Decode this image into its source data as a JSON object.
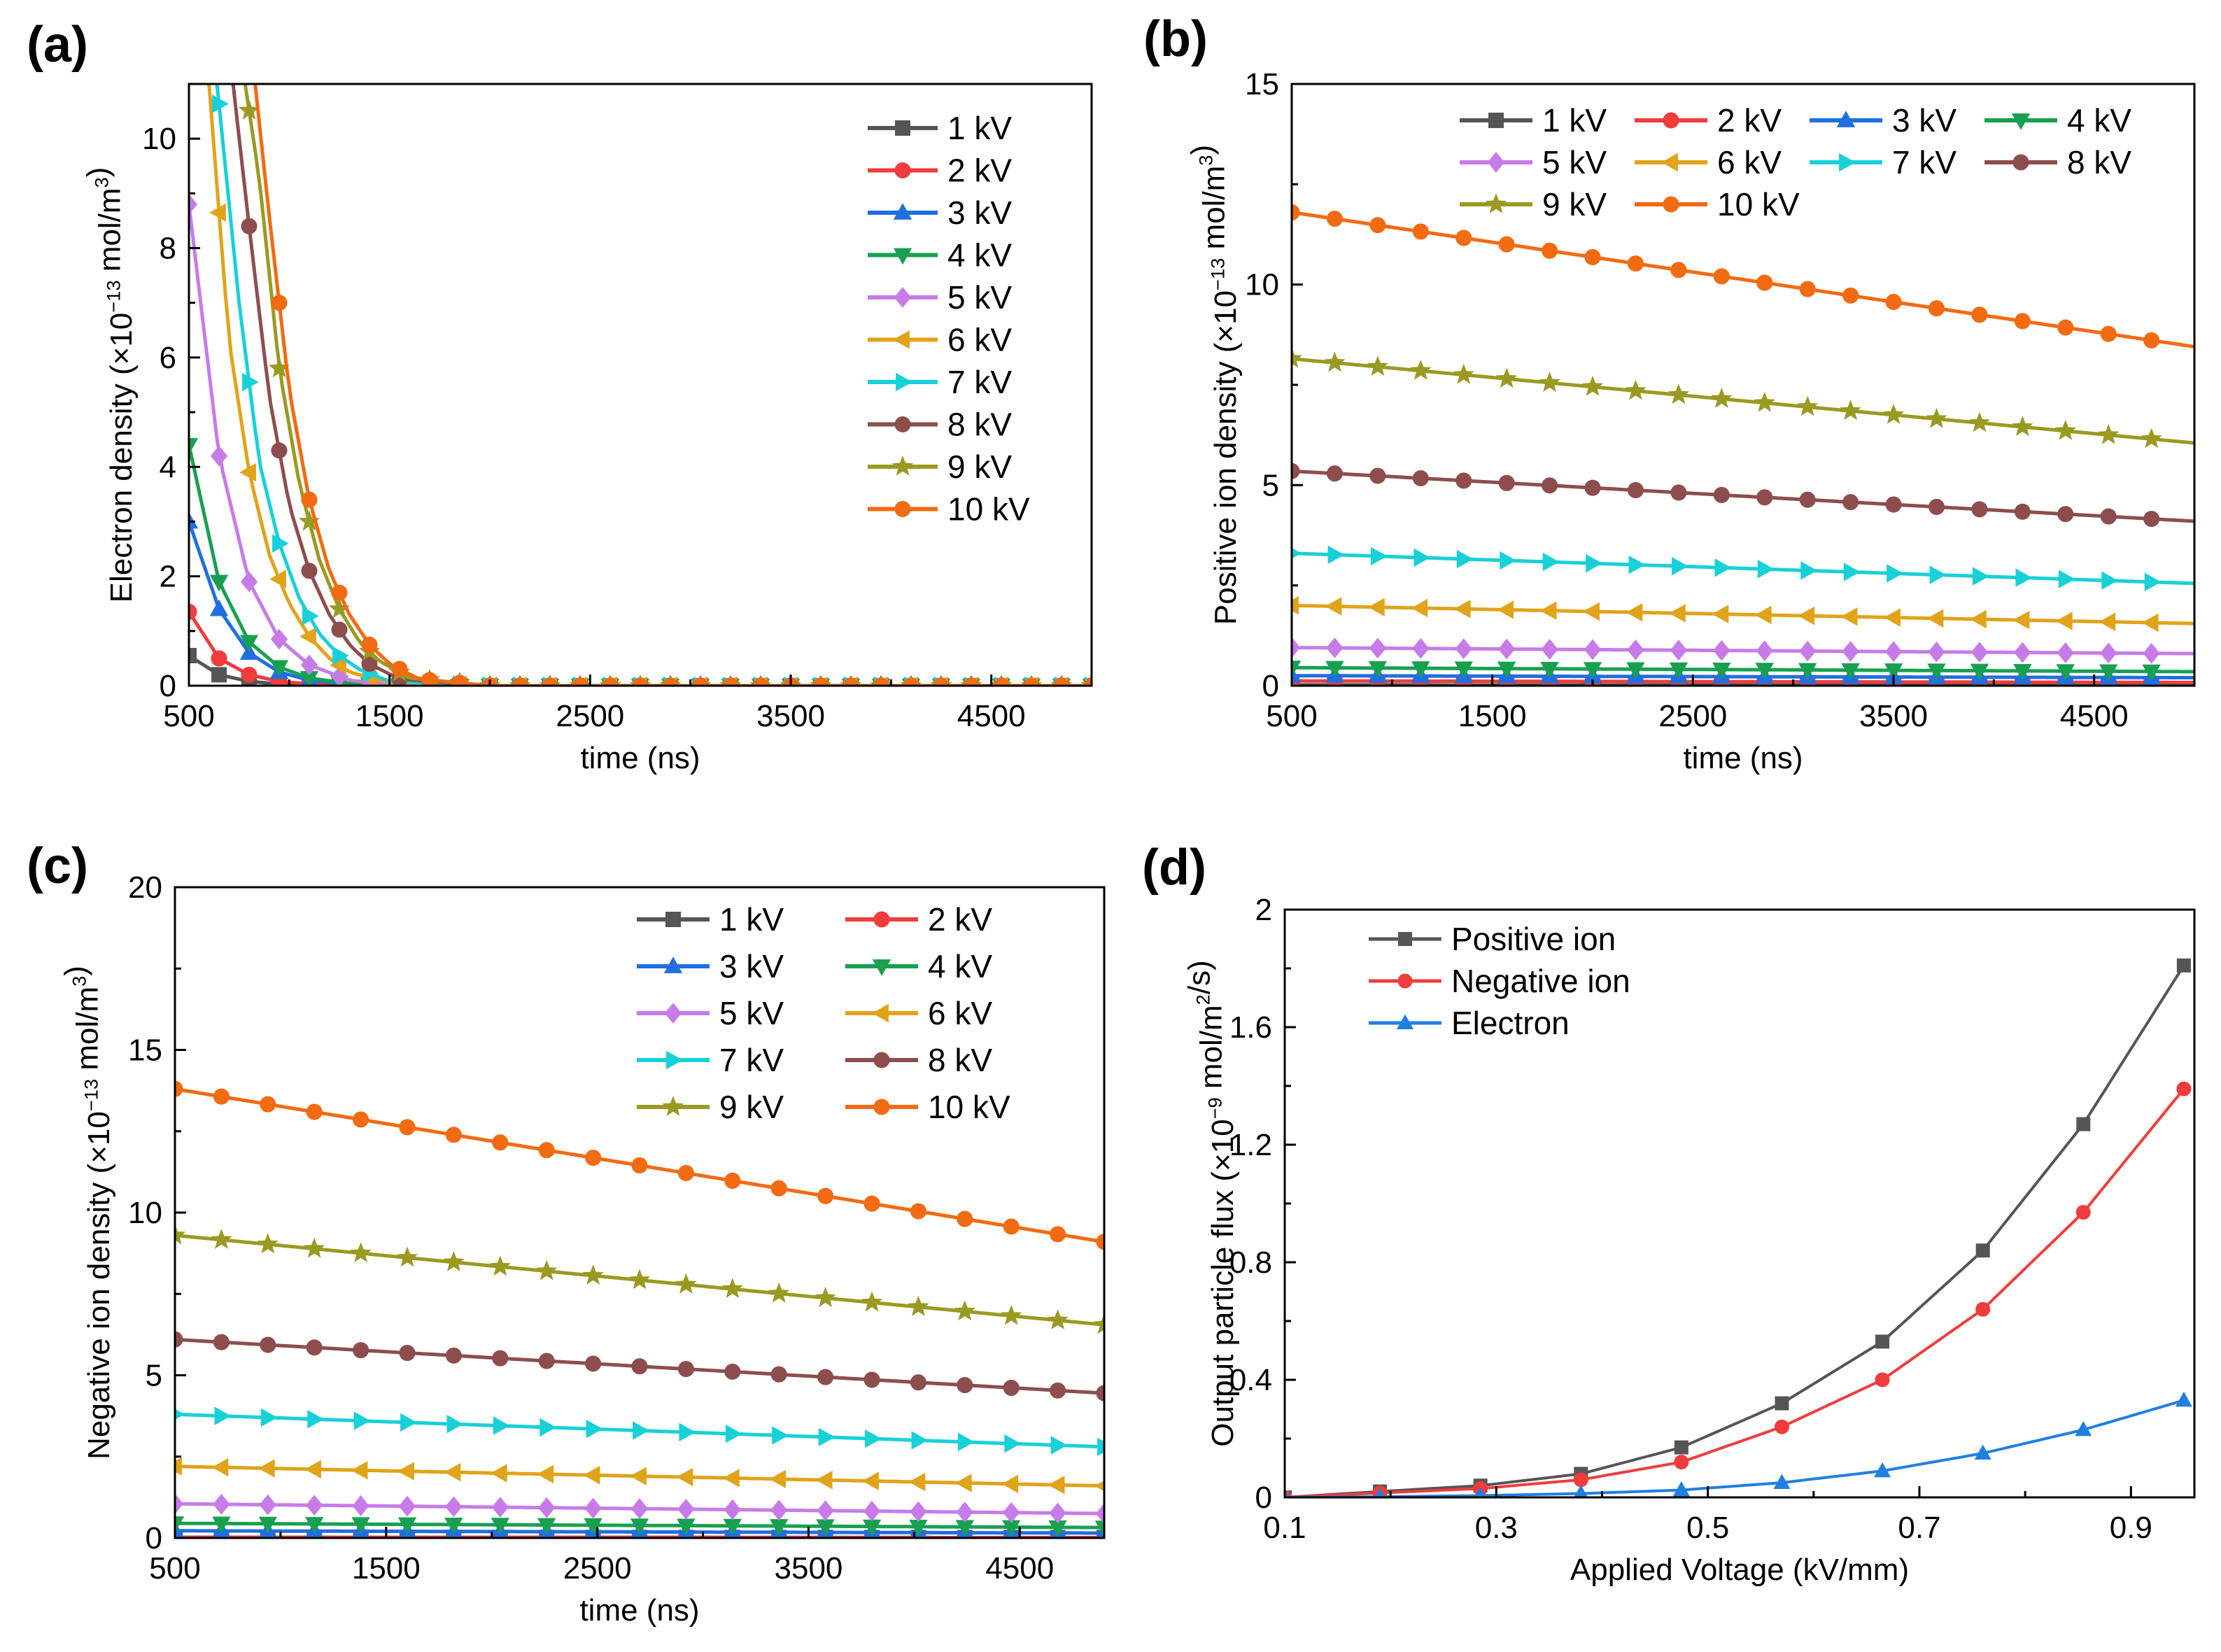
{
  "colors": {
    "1 kV": "#555555",
    "2 kV": "#f03c3c",
    "3 kV": "#1f6fe0",
    "4 kV": "#18a050",
    "5 kV": "#c77be8",
    "6 kV": "#e0a31a",
    "7 kV": "#18d0d8",
    "8 kV": "#8e4d4d",
    "9 kV": "#9a9a22",
    "10 kV": "#f26a12",
    "Positive ion": "#555555",
    "Negative ion": "#f03c3c",
    "Electron": "#1f80e0"
  },
  "chart_data": [
    {
      "id": "a",
      "panel_label": "(a)",
      "type": "line",
      "xlabel": "time (ns)",
      "ylabel": "Electron density (×10⁻¹³ mol/m³)",
      "xlim": [
        500,
        5000
      ],
      "ylim": [
        0,
        11
      ],
      "xticks": [
        500,
        1500,
        2500,
        3500,
        4500
      ],
      "yticks": [
        0,
        2,
        4,
        6,
        8,
        10
      ],
      "legend_position": "top-right",
      "series": [
        {
          "name": "1 kV",
          "marker": "square",
          "x": [
            500,
            650,
            800,
            950,
            1100,
            1300,
            1500,
            2000,
            3000,
            4000,
            5000
          ],
          "y": [
            0.55,
            0.2,
            0.08,
            0.03,
            0.01,
            0,
            0,
            0,
            0,
            0,
            0
          ]
        },
        {
          "name": "2 kV",
          "marker": "circle",
          "x": [
            500,
            650,
            800,
            950,
            1100,
            1300,
            1500,
            2000,
            3000,
            4000,
            5000
          ],
          "y": [
            1.35,
            0.5,
            0.2,
            0.08,
            0.03,
            0.01,
            0,
            0,
            0,
            0,
            0
          ]
        },
        {
          "name": "3 kV",
          "marker": "triangle-up",
          "x": [
            500,
            650,
            800,
            950,
            1100,
            1300,
            1500,
            2000,
            3000,
            4000,
            5000
          ],
          "y": [
            3.0,
            1.4,
            0.6,
            0.25,
            0.1,
            0.03,
            0,
            0,
            0,
            0,
            0
          ]
        },
        {
          "name": "4 kV",
          "marker": "triangle-down",
          "x": [
            500,
            650,
            800,
            950,
            1100,
            1300,
            1500,
            2000,
            3000,
            4000,
            5000
          ],
          "y": [
            4.4,
            1.9,
            0.8,
            0.34,
            0.14,
            0.04,
            0,
            0,
            0,
            0,
            0
          ]
        },
        {
          "name": "5 kV",
          "marker": "diamond",
          "x": [
            500,
            650,
            800,
            950,
            1100,
            1300,
            1500,
            2000,
            3000,
            4000,
            5000
          ],
          "y": [
            8.8,
            4.2,
            1.9,
            0.85,
            0.38,
            0.1,
            0.02,
            0,
            0,
            0,
            0
          ]
        },
        {
          "name": "6 kV",
          "marker": "triangle-left",
          "x": [
            600,
            700,
            800,
            900,
            1000,
            1100,
            1200,
            1300,
            1500,
            2000,
            3000,
            4000,
            5000
          ],
          "y": [
            11.0,
            6.3,
            3.9,
            2.4,
            1.5,
            0.9,
            0.5,
            0.25,
            0.05,
            0,
            0,
            0,
            0
          ]
        },
        {
          "name": "7 kV",
          "marker": "triangle-right",
          "x": [
            640,
            750,
            850,
            950,
            1050,
            1150,
            1250,
            1350,
            1500,
            2000,
            3000,
            4000,
            5000
          ],
          "y": [
            11.0,
            7.0,
            4.1,
            2.6,
            1.6,
            0.95,
            0.55,
            0.3,
            0.08,
            0,
            0,
            0,
            0
          ]
        },
        {
          "name": "8 kV",
          "marker": "circle",
          "x": [
            720,
            800,
            900,
            1000,
            1100,
            1200,
            1300,
            1400,
            1550,
            2000,
            3000,
            4000,
            5000
          ],
          "y": [
            11.0,
            8.4,
            5.3,
            3.3,
            2.1,
            1.3,
            0.75,
            0.4,
            0.12,
            0,
            0,
            0,
            0
          ]
        },
        {
          "name": "9 kV",
          "marker": "star",
          "x": [
            780,
            850,
            950,
            1050,
            1150,
            1250,
            1350,
            1450,
            1600,
            2000,
            3000,
            4000,
            5000
          ],
          "y": [
            11.0,
            9.3,
            5.8,
            3.7,
            2.3,
            1.4,
            0.8,
            0.45,
            0.14,
            0,
            0,
            0,
            0
          ]
        },
        {
          "name": "10 kV",
          "marker": "circle",
          "x": [
            830,
            900,
            1000,
            1100,
            1200,
            1300,
            1400,
            1500,
            1650,
            2000,
            3000,
            4000,
            5000
          ],
          "y": [
            11.0,
            8.6,
            5.4,
            3.4,
            2.1,
            1.3,
            0.75,
            0.4,
            0.12,
            0,
            0,
            0,
            0
          ]
        }
      ]
    },
    {
      "id": "b",
      "panel_label": "(b)",
      "type": "line",
      "xlabel": "time (ns)",
      "ylabel": "Positive ion density (×10⁻¹³ mol/m³)",
      "xlim": [
        500,
        5000
      ],
      "ylim": [
        0,
        15
      ],
      "xticks": [
        500,
        1500,
        2500,
        3500,
        4500
      ],
      "yticks": [
        0,
        5,
        10,
        15
      ],
      "legend_position": "top",
      "series": [
        {
          "name": "1 kV",
          "marker": "square",
          "x": [
            500,
            5000
          ],
          "y": [
            0.02,
            0.01
          ]
        },
        {
          "name": "2 kV",
          "marker": "circle",
          "x": [
            500,
            5000
          ],
          "y": [
            0.12,
            0.08
          ]
        },
        {
          "name": "3 kV",
          "marker": "triangle-up",
          "x": [
            500,
            5000
          ],
          "y": [
            0.25,
            0.2
          ]
        },
        {
          "name": "4 kV",
          "marker": "triangle-down",
          "x": [
            500,
            5000
          ],
          "y": [
            0.45,
            0.35
          ]
        },
        {
          "name": "5 kV",
          "marker": "diamond",
          "x": [
            500,
            5000
          ],
          "y": [
            0.95,
            0.8
          ]
        },
        {
          "name": "6 kV",
          "marker": "triangle-left",
          "x": [
            500,
            5000
          ],
          "y": [
            2.0,
            1.55
          ]
        },
        {
          "name": "7 kV",
          "marker": "triangle-right",
          "x": [
            500,
            5000
          ],
          "y": [
            3.3,
            2.55
          ]
        },
        {
          "name": "8 kV",
          "marker": "circle",
          "x": [
            500,
            5000
          ],
          "y": [
            5.35,
            4.1
          ]
        },
        {
          "name": "9 kV",
          "marker": "star",
          "x": [
            500,
            5000
          ],
          "y": [
            8.15,
            6.05
          ]
        },
        {
          "name": "10 kV",
          "marker": "circle",
          "x": [
            500,
            5000
          ],
          "y": [
            11.8,
            8.45
          ]
        }
      ]
    },
    {
      "id": "c",
      "panel_label": "(c)",
      "type": "line",
      "xlabel": "time (ns)",
      "ylabel": "Negative ion density (×10⁻¹³ mol/m³)",
      "xlim": [
        500,
        4900
      ],
      "ylim": [
        0,
        20
      ],
      "xticks": [
        500,
        1500,
        2500,
        3500,
        4500
      ],
      "yticks": [
        0,
        5,
        10,
        15,
        20
      ],
      "legend_position": "top-right",
      "series": [
        {
          "name": "1 kV",
          "marker": "square",
          "x": [
            500,
            4900
          ],
          "y": [
            0.02,
            0.01
          ]
        },
        {
          "name": "2 kV",
          "marker": "circle",
          "x": [
            500,
            4900
          ],
          "y": [
            0.02,
            0.01
          ]
        },
        {
          "name": "3 kV",
          "marker": "triangle-up",
          "x": [
            500,
            4900
          ],
          "y": [
            0.22,
            0.15
          ]
        },
        {
          "name": "4 kV",
          "marker": "triangle-down",
          "x": [
            500,
            4900
          ],
          "y": [
            0.45,
            0.32
          ]
        },
        {
          "name": "5 kV",
          "marker": "diamond",
          "x": [
            500,
            4900
          ],
          "y": [
            1.05,
            0.75
          ]
        },
        {
          "name": "6 kV",
          "marker": "triangle-left",
          "x": [
            500,
            4900
          ],
          "y": [
            2.2,
            1.6
          ]
        },
        {
          "name": "7 kV",
          "marker": "triangle-right",
          "x": [
            500,
            4900
          ],
          "y": [
            3.8,
            2.8
          ]
        },
        {
          "name": "8 kV",
          "marker": "circle",
          "x": [
            500,
            4900
          ],
          "y": [
            6.1,
            4.45
          ]
        },
        {
          "name": "9 kV",
          "marker": "star",
          "x": [
            500,
            4900
          ],
          "y": [
            9.3,
            6.55
          ]
        },
        {
          "name": "10 kV",
          "marker": "circle",
          "x": [
            500,
            4900
          ],
          "y": [
            13.8,
            9.1
          ]
        }
      ]
    },
    {
      "id": "d",
      "panel_label": "(d)",
      "type": "line",
      "xlabel": "Applied Voltage (kV/mm)",
      "ylabel": "Output particle flux (×10⁻⁹ mol/m²/s)",
      "xlim": [
        0.1,
        0.96
      ],
      "ylim": [
        0,
        2
      ],
      "xticks": [
        0.1,
        0.3,
        0.5,
        0.7,
        0.9
      ],
      "yticks": [
        0,
        0.4,
        0.8,
        1.2,
        1.6,
        2
      ],
      "legend_position": "top-left",
      "series": [
        {
          "name": "Positive ion",
          "marker": "square",
          "x": [
            0.1,
            0.19,
            0.285,
            0.38,
            0.475,
            0.57,
            0.665,
            0.76,
            0.855,
            0.95
          ],
          "y": [
            0,
            0.02,
            0.04,
            0.08,
            0.17,
            0.32,
            0.53,
            0.84,
            1.27,
            1.81
          ]
        },
        {
          "name": "Negative ion",
          "marker": "circle",
          "x": [
            0.1,
            0.19,
            0.285,
            0.38,
            0.475,
            0.57,
            0.665,
            0.76,
            0.855,
            0.95
          ],
          "y": [
            0,
            0.015,
            0.03,
            0.06,
            0.12,
            0.24,
            0.4,
            0.64,
            0.97,
            1.39
          ]
        },
        {
          "name": "Electron",
          "marker": "triangle-up",
          "x": [
            0.1,
            0.19,
            0.285,
            0.38,
            0.475,
            0.57,
            0.665,
            0.76,
            0.855,
            0.95
          ],
          "y": [
            0,
            0.002,
            0.006,
            0.013,
            0.025,
            0.05,
            0.09,
            0.15,
            0.23,
            0.33
          ]
        }
      ]
    }
  ]
}
